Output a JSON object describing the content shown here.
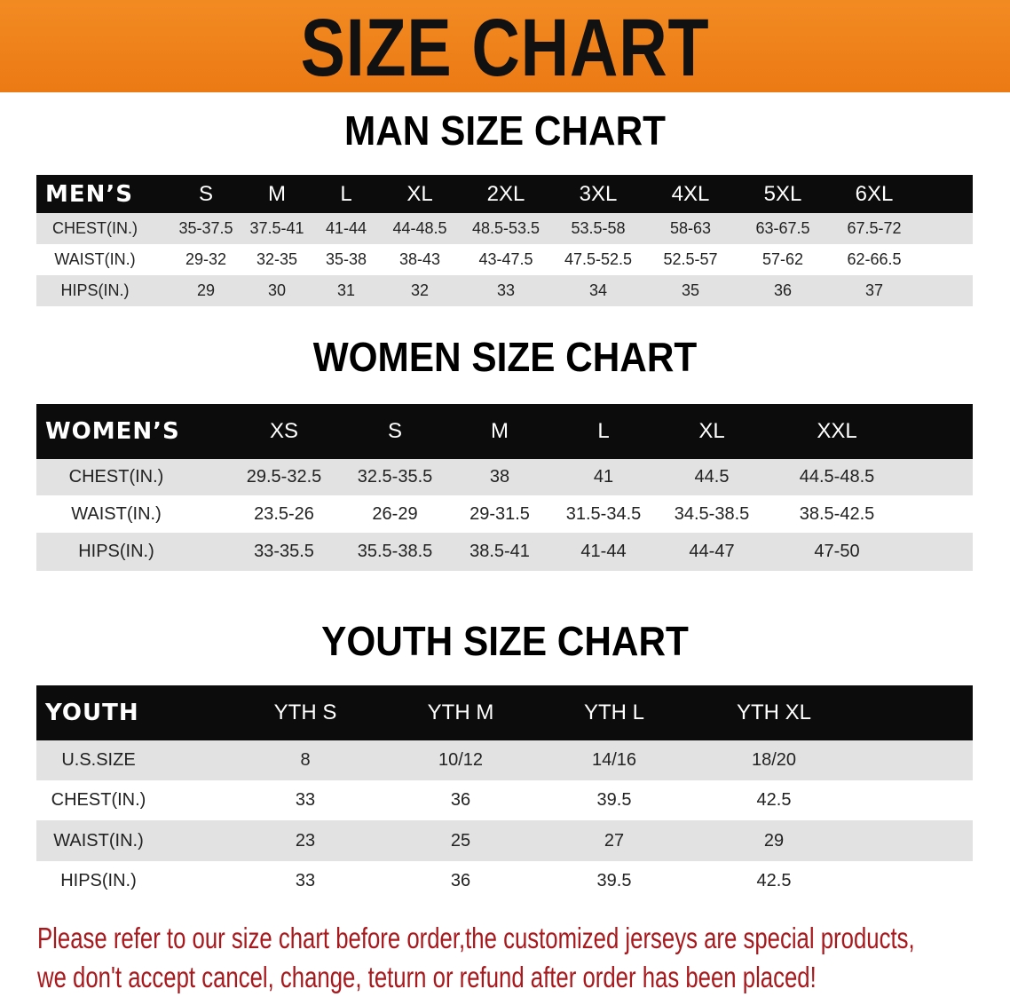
{
  "banner": {
    "title": "SIZE CHART",
    "color": "#ef8419"
  },
  "men": {
    "title": "MAN SIZE CHART",
    "headers": [
      "MEN’S",
      "S",
      "M",
      "L",
      "XL",
      "2XL",
      "3XL",
      "4XL",
      "5XL",
      "6XL"
    ],
    "rows": [
      [
        "CHEST(IN.)",
        "35-37.5",
        "37.5-41",
        "41-44",
        "44-48.5",
        "48.5-53.5",
        "53.5-58",
        "58-63",
        "63-67.5",
        "67.5-72"
      ],
      [
        "WAIST(IN.)",
        "29-32",
        "32-35",
        "35-38",
        "38-43",
        "43-47.5",
        "47.5-52.5",
        "52.5-57",
        "57-62",
        "62-66.5"
      ],
      [
        "HIPS(IN.)",
        "29",
        "30",
        "31",
        "32",
        "33",
        "34",
        "35",
        "36",
        "37"
      ]
    ]
  },
  "women": {
    "title": "WOMEN SIZE CHART",
    "headers": [
      "WOMEN’S",
      "XS",
      "S",
      "M",
      "L",
      "XL",
      "XXL"
    ],
    "rows": [
      [
        "CHEST(IN.)",
        "29.5-32.5",
        "32.5-35.5",
        "38",
        "41",
        "44.5",
        "44.5-48.5"
      ],
      [
        "WAIST(IN.)",
        "23.5-26",
        "26-29",
        "29-31.5",
        "31.5-34.5",
        "34.5-38.5",
        "38.5-42.5"
      ],
      [
        "HIPS(IN.)",
        "33-35.5",
        "35.5-38.5",
        "38.5-41",
        "41-44",
        "44-47",
        "47-50"
      ]
    ]
  },
  "youth": {
    "title": "YOUTH SIZE CHART",
    "headers": [
      "YOUTH",
      "YTH S",
      "YTH M",
      "YTH L",
      "YTH XL"
    ],
    "rows": [
      [
        "U.S.SIZE",
        "8",
        "10/12",
        "14/16",
        "18/20"
      ],
      [
        "CHEST(IN.)",
        "33",
        "36",
        "39.5",
        "42.5"
      ],
      [
        "WAIST(IN.)",
        "23",
        "25",
        "27",
        "29"
      ],
      [
        "HIPS(IN.)",
        "33",
        "36",
        "39.5",
        "42.5"
      ]
    ]
  },
  "notice": {
    "line1": "Please refer to our size chart before order,the customized jerseys are special products,",
    "line2": "we don't accept cancel, change, teturn or refund after order has been placed!",
    "color": "#a8191d"
  }
}
